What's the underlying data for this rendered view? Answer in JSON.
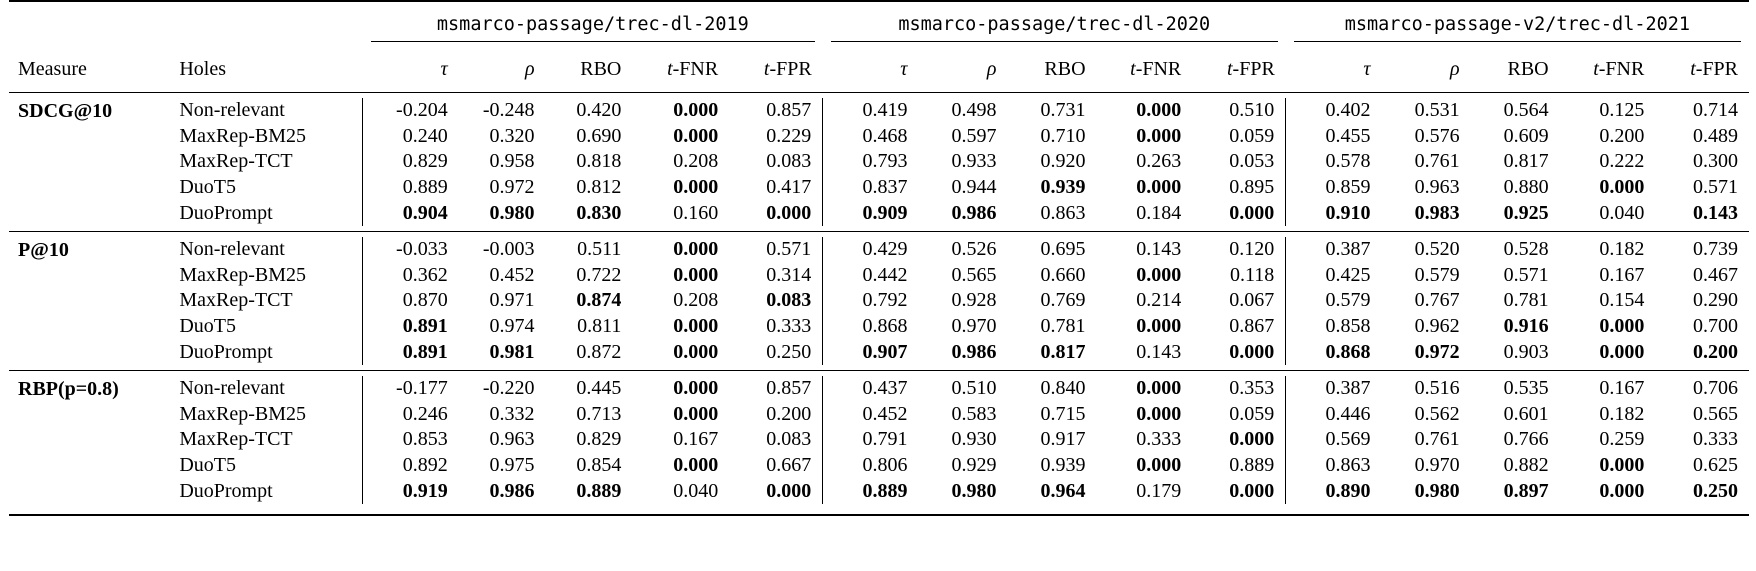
{
  "header": {
    "measure_label": "Measure",
    "holes_label": "Holes",
    "datasets": [
      "msmarco-passage/trec-dl-2019",
      "msmarco-passage/trec-dl-2020",
      "msmarco-passage-v2/trec-dl-2021"
    ],
    "columns": [
      {
        "pre": "",
        "text": "τ",
        "italic": true
      },
      {
        "pre": "",
        "text": "ρ",
        "italic": true
      },
      {
        "pre": "",
        "text": "RBO",
        "italic": false
      },
      {
        "pre": "t",
        "text": "-FNR",
        "italic": false
      },
      {
        "pre": "t",
        "text": "-FPR",
        "italic": false
      }
    ]
  },
  "groups": [
    {
      "measure": "SDCG@10",
      "rows": [
        {
          "hole": "Non-relevant",
          "values": [
            "-0.204",
            "-0.248",
            "0.420",
            "0.000",
            "0.857",
            "0.419",
            "0.498",
            "0.731",
            "0.000",
            "0.510",
            "0.402",
            "0.531",
            "0.564",
            "0.125",
            "0.714"
          ],
          "bold": [
            3,
            8
          ]
        },
        {
          "hole": "MaxRep-BM25",
          "values": [
            "0.240",
            "0.320",
            "0.690",
            "0.000",
            "0.229",
            "0.468",
            "0.597",
            "0.710",
            "0.000",
            "0.059",
            "0.455",
            "0.576",
            "0.609",
            "0.200",
            "0.489"
          ],
          "bold": [
            3,
            8
          ]
        },
        {
          "hole": "MaxRep-TCT",
          "values": [
            "0.829",
            "0.958",
            "0.818",
            "0.208",
            "0.083",
            "0.793",
            "0.933",
            "0.920",
            "0.263",
            "0.053",
            "0.578",
            "0.761",
            "0.817",
            "0.222",
            "0.300"
          ],
          "bold": []
        },
        {
          "hole": "DuoT5",
          "values": [
            "0.889",
            "0.972",
            "0.812",
            "0.000",
            "0.417",
            "0.837",
            "0.944",
            "0.939",
            "0.000",
            "0.895",
            "0.859",
            "0.963",
            "0.880",
            "0.000",
            "0.571"
          ],
          "bold": [
            3,
            7,
            8,
            13
          ]
        },
        {
          "hole": "DuoPrompt",
          "values": [
            "0.904",
            "0.980",
            "0.830",
            "0.160",
            "0.000",
            "0.909",
            "0.986",
            "0.863",
            "0.184",
            "0.000",
            "0.910",
            "0.983",
            "0.925",
            "0.040",
            "0.143"
          ],
          "bold": [
            0,
            1,
            2,
            4,
            5,
            6,
            9,
            10,
            11,
            12,
            14
          ]
        }
      ]
    },
    {
      "measure": "P@10",
      "rows": [
        {
          "hole": "Non-relevant",
          "values": [
            "-0.033",
            "-0.003",
            "0.511",
            "0.000",
            "0.571",
            "0.429",
            "0.526",
            "0.695",
            "0.143",
            "0.120",
            "0.387",
            "0.520",
            "0.528",
            "0.182",
            "0.739"
          ],
          "bold": [
            3
          ]
        },
        {
          "hole": "MaxRep-BM25",
          "values": [
            "0.362",
            "0.452",
            "0.722",
            "0.000",
            "0.314",
            "0.442",
            "0.565",
            "0.660",
            "0.000",
            "0.118",
            "0.425",
            "0.579",
            "0.571",
            "0.167",
            "0.467"
          ],
          "bold": [
            3,
            8
          ]
        },
        {
          "hole": "MaxRep-TCT",
          "values": [
            "0.870",
            "0.971",
            "0.874",
            "0.208",
            "0.083",
            "0.792",
            "0.928",
            "0.769",
            "0.214",
            "0.067",
            "0.579",
            "0.767",
            "0.781",
            "0.154",
            "0.290"
          ],
          "bold": [
            2,
            4
          ]
        },
        {
          "hole": "DuoT5",
          "values": [
            "0.891",
            "0.974",
            "0.811",
            "0.000",
            "0.333",
            "0.868",
            "0.970",
            "0.781",
            "0.000",
            "0.867",
            "0.858",
            "0.962",
            "0.916",
            "0.000",
            "0.700"
          ],
          "bold": [
            0,
            3,
            8,
            12,
            13
          ]
        },
        {
          "hole": "DuoPrompt",
          "values": [
            "0.891",
            "0.981",
            "0.872",
            "0.000",
            "0.250",
            "0.907",
            "0.986",
            "0.817",
            "0.143",
            "0.000",
            "0.868",
            "0.972",
            "0.903",
            "0.000",
            "0.200"
          ],
          "bold": [
            0,
            1,
            3,
            5,
            6,
            7,
            9,
            10,
            11,
            13,
            14
          ]
        }
      ]
    },
    {
      "measure": "RBP(p=0.8)",
      "rows": [
        {
          "hole": "Non-relevant",
          "values": [
            "-0.177",
            "-0.220",
            "0.445",
            "0.000",
            "0.857",
            "0.437",
            "0.510",
            "0.840",
            "0.000",
            "0.353",
            "0.387",
            "0.516",
            "0.535",
            "0.167",
            "0.706"
          ],
          "bold": [
            3,
            8
          ]
        },
        {
          "hole": "MaxRep-BM25",
          "values": [
            "0.246",
            "0.332",
            "0.713",
            "0.000",
            "0.200",
            "0.452",
            "0.583",
            "0.715",
            "0.000",
            "0.059",
            "0.446",
            "0.562",
            "0.601",
            "0.182",
            "0.565"
          ],
          "bold": [
            3,
            8
          ]
        },
        {
          "hole": "MaxRep-TCT",
          "values": [
            "0.853",
            "0.963",
            "0.829",
            "0.167",
            "0.083",
            "0.791",
            "0.930",
            "0.917",
            "0.333",
            "0.000",
            "0.569",
            "0.761",
            "0.766",
            "0.259",
            "0.333"
          ],
          "bold": [
            9
          ]
        },
        {
          "hole": "DuoT5",
          "values": [
            "0.892",
            "0.975",
            "0.854",
            "0.000",
            "0.667",
            "0.806",
            "0.929",
            "0.939",
            "0.000",
            "0.889",
            "0.863",
            "0.970",
            "0.882",
            "0.000",
            "0.625"
          ],
          "bold": [
            3,
            8,
            13
          ]
        },
        {
          "hole": "DuoPrompt",
          "values": [
            "0.919",
            "0.986",
            "0.889",
            "0.040",
            "0.000",
            "0.889",
            "0.980",
            "0.964",
            "0.179",
            "0.000",
            "0.890",
            "0.980",
            "0.897",
            "0.000",
            "0.250"
          ],
          "bold": [
            0,
            1,
            2,
            4,
            5,
            6,
            7,
            9,
            10,
            11,
            12,
            13,
            14
          ]
        }
      ]
    }
  ]
}
